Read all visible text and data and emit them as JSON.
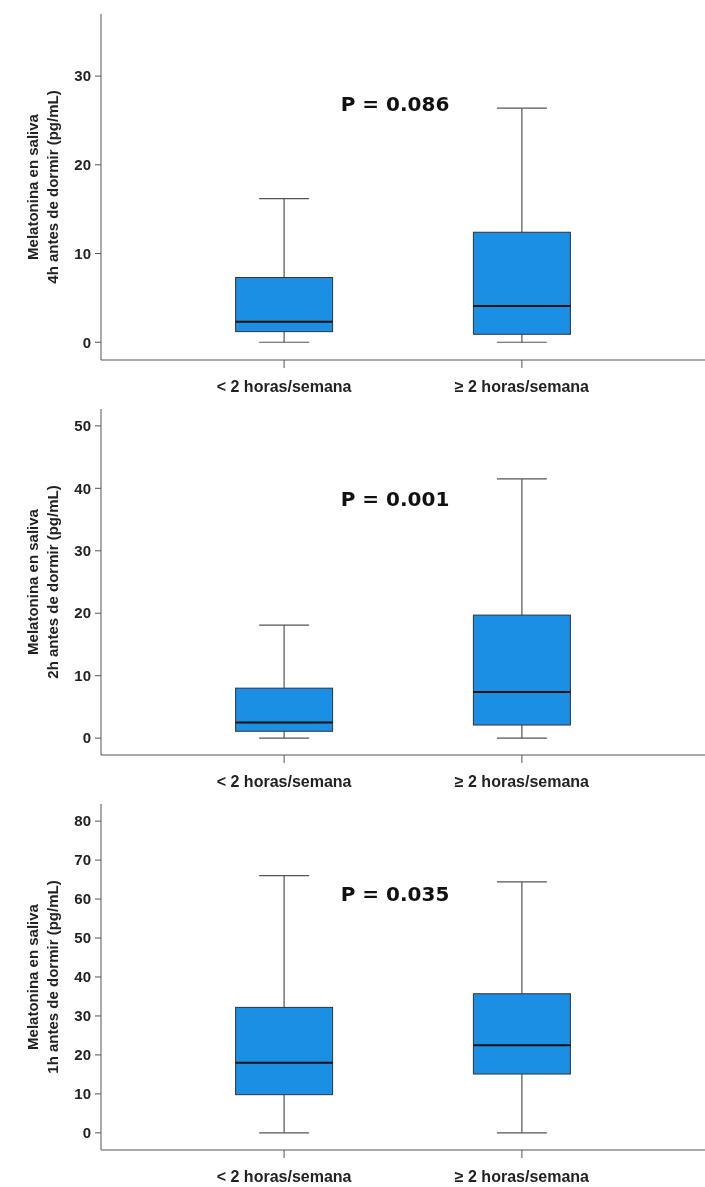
{
  "chart_data": [
    {
      "type": "box",
      "ylabel": "Melatonina en saliva\n4h antes de dormir (pg/mL)",
      "categories": [
        "< 2 horas/semana",
        "≥ 2 horas/semana"
      ],
      "color": "#1a8fe3",
      "ylim": [
        -2,
        37
      ],
      "yticks": [
        0,
        10,
        20,
        30
      ],
      "annotations": [
        "P = 0.086"
      ],
      "boxes": [
        {
          "low": 0,
          "q1": 1.2,
          "median": 2.3,
          "q3": 7.3,
          "high": 16.2
        },
        {
          "low": 0,
          "q1": 0.9,
          "median": 4.1,
          "q3": 12.4,
          "high": 26.4
        }
      ]
    },
    {
      "type": "box",
      "ylabel": "Melatonina en saliva\n2h antes de dormir (pg/mL)",
      "categories": [
        "< 2 horas/semana",
        "≥ 2 horas/semana"
      ],
      "color": "#1a8fe3",
      "ylim": [
        -2.7,
        52.7
      ],
      "yticks": [
        0,
        10,
        20,
        30,
        40,
        50
      ],
      "annotations": [
        "P = 0.001"
      ],
      "boxes": [
        {
          "low": 0,
          "q1": 1.1,
          "median": 2.5,
          "q3": 8.0,
          "high": 18.1
        },
        {
          "low": 0,
          "q1": 2.1,
          "median": 7.4,
          "q3": 19.7,
          "high": 41.5
        }
      ]
    },
    {
      "type": "box",
      "ylabel": "Melatonina en saliva\n1h antes de dormir (pg/mL)",
      "categories": [
        "< 2 horas/semana",
        "≥ 2 horas/semana"
      ],
      "color": "#1a8fe3",
      "ylim": [
        -4.4,
        84.4
      ],
      "yticks": [
        0,
        10,
        20,
        30,
        40,
        50,
        60,
        70,
        80
      ],
      "annotations": [
        "P = 0.035"
      ],
      "boxes": [
        {
          "low": 0,
          "q1": 9.8,
          "median": 18.0,
          "q3": 32.2,
          "high": 66.0
        },
        {
          "low": 0,
          "q1": 15.1,
          "median": 22.5,
          "q3": 35.7,
          "high": 64.4
        }
      ]
    }
  ]
}
